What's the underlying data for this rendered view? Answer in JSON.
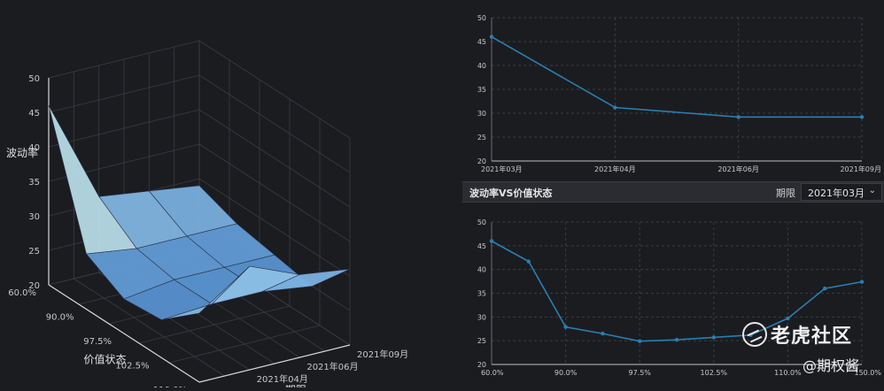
{
  "panel": {
    "title": "波动率VS价值状态",
    "term_label": "期限",
    "term_selected": "2021年03月"
  },
  "watermark": {
    "name": "老虎社区",
    "handle": "@期权酱"
  },
  "colors": {
    "line": "#2a7fb0",
    "grid": "#3a3c42",
    "axis": "#6a6c72",
    "tick_text": "#c8c8c8"
  },
  "chart_data": [
    {
      "type": "surface3d",
      "title": "",
      "zlabel": "波动率",
      "ylabel": "价值状态",
      "xlabel": "期限",
      "zlim": [
        20,
        50
      ],
      "z_ticks": [
        20,
        25,
        30,
        35,
        40,
        45,
        50
      ],
      "moneyness": [
        "60.0%",
        "90.0%",
        "97.5%",
        "102.5%",
        "110.0%"
      ],
      "expiries": [
        "2021年03月",
        "2021年04月",
        "2021年06月",
        "2021年09月"
      ],
      "expiry_tick_labels": [
        "2021年04月",
        "2021年06月",
        "2021年09月"
      ],
      "z": [
        [
          46,
          31,
          30,
          29
        ],
        [
          28,
          27,
          27,
          27
        ],
        [
          25,
          26,
          26,
          26
        ],
        [
          25.5,
          26,
          26,
          25
        ],
        [
          30,
          35,
          32,
          31
        ]
      ]
    },
    {
      "type": "line",
      "title": "",
      "xlabel": "",
      "ylabel": "",
      "ylim": [
        20,
        50
      ],
      "y_ticks": [
        20,
        25,
        30,
        35,
        40,
        45,
        50
      ],
      "categories": [
        "2021年03月",
        "2021年04月",
        "2021年06月",
        "2021年09月"
      ],
      "values": [
        46,
        31.2,
        29.2,
        29.2
      ]
    },
    {
      "type": "line",
      "title": "",
      "xlabel": "",
      "ylabel": "",
      "ylim": [
        20,
        50
      ],
      "y_ticks": [
        20,
        25,
        30,
        35,
        40,
        45,
        50
      ],
      "x_tick_labels": [
        "60.0%",
        "90.0%",
        "97.5%",
        "102.5%",
        "110.0%",
        "150.0%"
      ],
      "values": [
        46,
        41.7,
        27.9,
        26.5,
        24.9,
        25.2,
        25.7,
        26.2,
        29.7,
        36,
        37.4
      ]
    }
  ]
}
